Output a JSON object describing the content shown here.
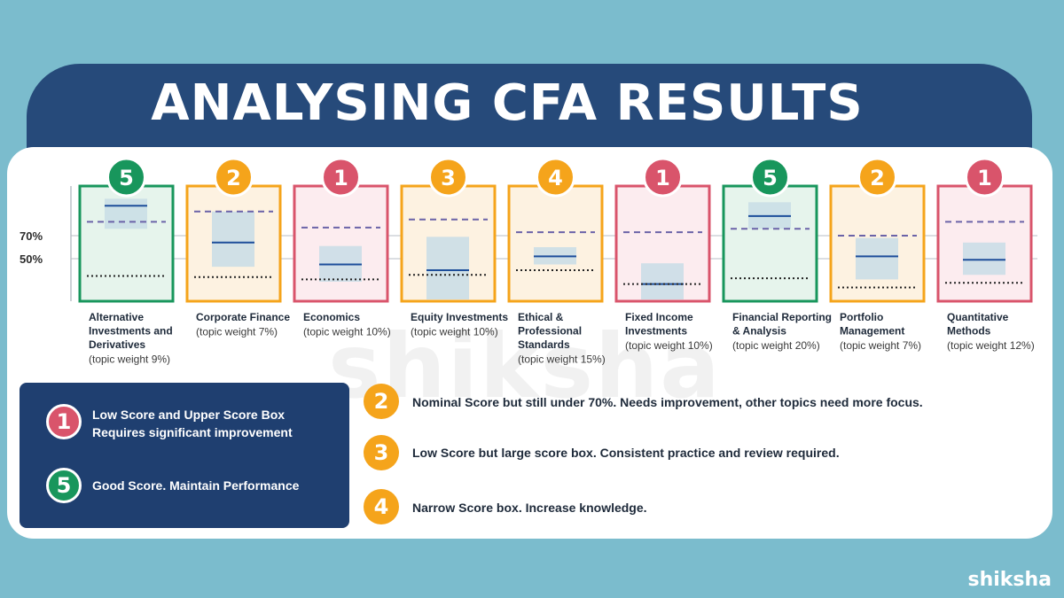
{
  "title": "ANALYSING CFA RESULTS",
  "colors": {
    "red": "#d9546b",
    "green": "#18965c",
    "orange": "#f5a41b",
    "navy": "#1f3f70"
  },
  "chart_data": {
    "type": "box",
    "y_ticks": [
      {
        "value": 70,
        "label": "70%"
      },
      {
        "value": 50,
        "label": "50%"
      }
    ],
    "categories": [
      {
        "label": [
          "Alternative",
          "Investments and",
          "Derivatives"
        ],
        "weight": "(topic weight 9%)",
        "rating": 5,
        "box_low": 76,
        "box_high": 102,
        "score": 96,
        "upper_dashed": 82,
        "lower_dotted": 35
      },
      {
        "label": [
          "Corporate Finance"
        ],
        "weight": "(topic weight 7%)",
        "rating": 2,
        "box_low": 43,
        "box_high": 91,
        "score": 64,
        "upper_dashed": 91,
        "lower_dotted": 34
      },
      {
        "label": [
          "Economics"
        ],
        "weight": "(topic weight 10%)",
        "rating": 1,
        "box_low": 30,
        "box_high": 61,
        "score": 45,
        "upper_dashed": 77,
        "lower_dotted": 32
      },
      {
        "label": [
          "Equity Investments"
        ],
        "weight": "(topic weight 10%)",
        "rating": 3,
        "box_low": 1,
        "box_high": 69,
        "score": 40,
        "upper_dashed": 84,
        "lower_dotted": 36
      },
      {
        "label": [
          "Ethical &",
          "Professional",
          "Standards"
        ],
        "weight": "(topic weight 15%)",
        "rating": 4,
        "box_low": 45,
        "box_high": 60,
        "score": 52,
        "upper_dashed": 73,
        "lower_dotted": 40
      },
      {
        "label": [
          "Fixed Income",
          "Investments"
        ],
        "weight": "(topic weight 10%)",
        "rating": 1,
        "box_low": 6,
        "box_high": 46,
        "score": 28,
        "upper_dashed": 73,
        "lower_dotted": 28
      },
      {
        "label": [
          "Financial Reporting",
          "& Analysis"
        ],
        "weight": "(topic weight 20%)",
        "rating": 5,
        "box_low": 76,
        "box_high": 99,
        "score": 87,
        "upper_dashed": 76,
        "lower_dotted": 33
      },
      {
        "label": [
          "Portfolio",
          "Management"
        ],
        "weight": "(topic weight 7%)",
        "rating": 2,
        "box_low": 32,
        "box_high": 68,
        "score": 52,
        "upper_dashed": 70,
        "lower_dotted": 25
      },
      {
        "label": [
          "Quantitative",
          "Methods"
        ],
        "weight": "(topic weight 12%)",
        "rating": 1,
        "box_low": 36,
        "box_high": 64,
        "score": 49,
        "upper_dashed": 82,
        "lower_dotted": 29
      }
    ]
  },
  "legend": {
    "items": [
      {
        "number": "1",
        "text_line1": "Low Score and Upper Score Box",
        "text_line2": "Requires significant improvement"
      },
      {
        "number": "5",
        "text_line1": "Good Score. Maintain Performance"
      }
    ]
  },
  "notes": [
    {
      "number": "2",
      "text": "Nominal Score but still under 70%. Needs improvement, other topics need more focus."
    },
    {
      "number": "3",
      "text": "Low Score but large score box. Consistent practice and review required."
    },
    {
      "number": "4",
      "text": "Narrow Score box. Increase knowledge."
    }
  ],
  "brand": "shiksha",
  "watermark": "shiksha"
}
